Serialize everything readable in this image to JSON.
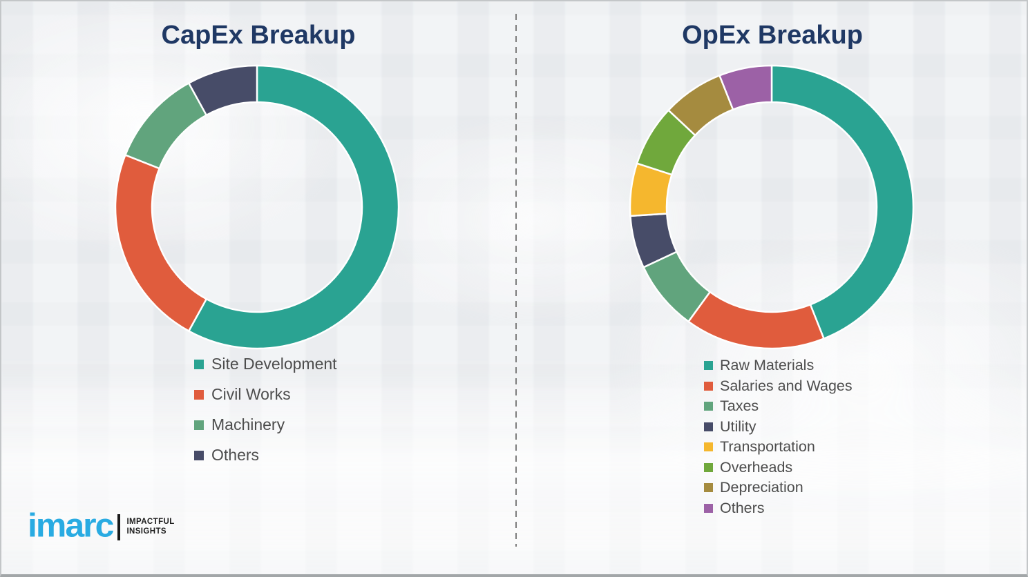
{
  "chart_data": [
    {
      "type": "pie",
      "name": "capex",
      "title": "CapEx Breakup",
      "donut": true,
      "inner_radius_ratio": 0.74,
      "start_angle_deg": 0,
      "direction": "clockwise",
      "legend_position": "bottom-left",
      "categories": [
        "Site Development",
        "Civil Works",
        "Machinery",
        "Others"
      ],
      "values": [
        58,
        23,
        11,
        8
      ],
      "colors": [
        "#2aa392",
        "#e05c3d",
        "#61a47d",
        "#474c68"
      ]
    },
    {
      "type": "pie",
      "name": "opex",
      "title": "OpEx Breakup",
      "donut": true,
      "inner_radius_ratio": 0.74,
      "start_angle_deg": 0,
      "direction": "clockwise",
      "legend_position": "bottom-left",
      "categories": [
        "Raw Materials",
        "Salaries and Wages",
        "Taxes",
        "Utility",
        "Transportation",
        "Overheads",
        "Depreciation",
        "Others"
      ],
      "values": [
        44,
        16,
        8,
        6,
        6,
        7,
        7,
        6
      ],
      "colors": [
        "#2aa392",
        "#e05c3d",
        "#61a47d",
        "#474c68",
        "#f5b72e",
        "#70a83c",
        "#a58b3f",
        "#9c61a6"
      ]
    }
  ],
  "branding": {
    "logo_text": "imarc",
    "tagline_line1": "IMPACTFUL",
    "tagline_line2": "INSIGHTS",
    "logo_color": "#29abe2"
  },
  "theme": {
    "title_color": "#1f3864",
    "legend_text_color": "#4d4d4d",
    "background_color": "#f1f2f4",
    "segment_gap_color": "#ffffff"
  }
}
